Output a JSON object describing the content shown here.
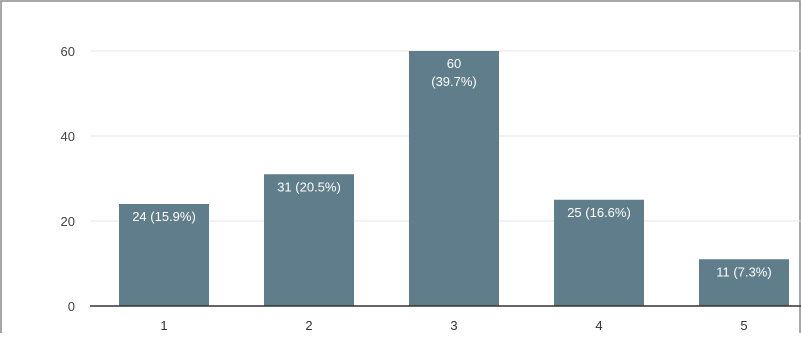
{
  "chart_data": {
    "type": "bar",
    "title": "",
    "xlabel": "",
    "ylabel": "",
    "categories": [
      "1",
      "2",
      "3",
      "4",
      "5"
    ],
    "values": [
      24,
      31,
      60,
      25,
      11
    ],
    "data_labels": [
      "24 (15.9%)",
      "31 (20.5%)",
      "60",
      "25 (16.6%)",
      "11 (7.3%)"
    ],
    "data_label_line2": [
      "",
      "",
      "(39.7%)",
      "",
      ""
    ],
    "ylim": [
      0,
      60
    ],
    "yticks": [
      "0",
      "20",
      "40",
      "60"
    ],
    "grid": true,
    "legend": "none",
    "bar_color": "#5f7d8a",
    "grid_color": "#e6e6e6",
    "axis_color": "#333333",
    "frame_color": "#8a8a8a"
  }
}
